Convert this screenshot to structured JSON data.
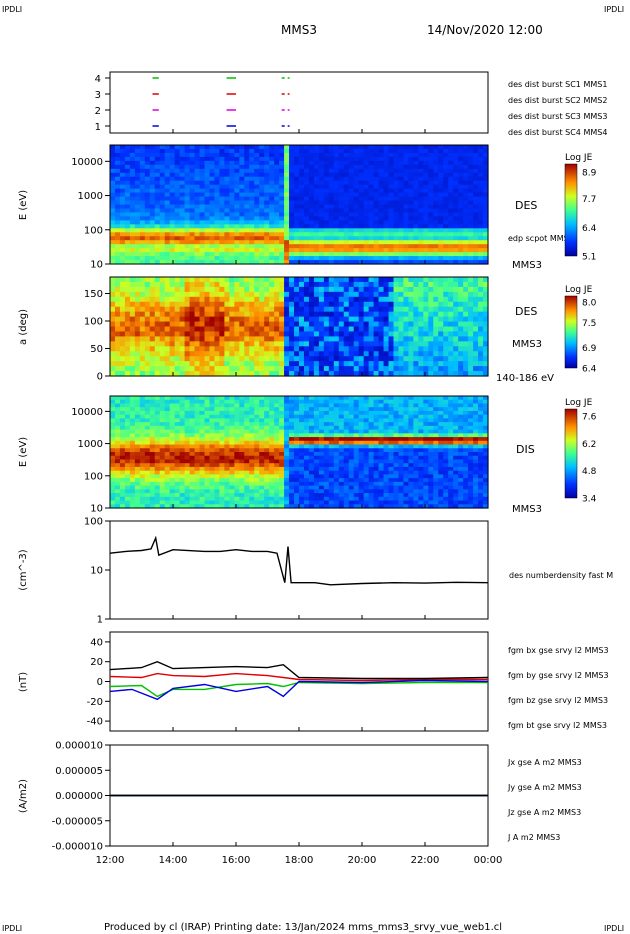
{
  "header": {
    "corner_left_top": "IPDLI",
    "corner_right_top": "IPDLI",
    "corner_left_bottom": "IPDLI",
    "corner_right_bottom": "IPDLI",
    "spacecraft": "MMS3",
    "datetime": "14/Nov/2020 12:00"
  },
  "footer": {
    "text": "Produced by cl (IRAP)   Printing date: 13/Jan/2024   mms_mms3_srvy_vue_web1.cl"
  },
  "colors": {
    "red": "#e00000",
    "green": "#00c000",
    "blue": "#0000e0",
    "magenta": "#e000e0",
    "black": "#000000"
  },
  "chart_data": [
    {
      "type": "timeline",
      "panel": "burst-availability",
      "y_ticks": [
        "1",
        "2",
        "3",
        "4"
      ],
      "legend": [
        {
          "name": "des dist burst SC1 MMS1",
          "color": "#0000e0"
        },
        {
          "name": "des dist burst SC2 MMS2",
          "color": "#e000e0"
        },
        {
          "name": "des dist burst SC3 MMS3",
          "color": "#e00000"
        },
        {
          "name": "des dist burst SC4 MMS4",
          "color": "#00c000"
        }
      ],
      "burst_intervals_hours": [
        [
          13.35,
          13.55
        ],
        [
          15.7,
          16.0
        ],
        [
          17.45,
          17.7
        ]
      ]
    },
    {
      "type": "heatmap",
      "panel": "des-energy",
      "ylabel": "E (eV)",
      "yscale": "log",
      "ylim": [
        10,
        30000
      ],
      "y_ticks": [
        "10",
        "100",
        "1000",
        "10000"
      ],
      "label": "DES",
      "sublabel": "MMS3",
      "overlay_label": "edp scpot MMS3",
      "colorbar": {
        "title": "Log JE",
        "ticks": [
          "8.9",
          "7.7",
          "6.4",
          "5.1"
        ],
        "range": [
          5.1,
          8.9
        ]
      }
    },
    {
      "type": "heatmap",
      "panel": "des-pitch-angle",
      "ylabel": "a (deg)",
      "ylim": [
        0,
        180
      ],
      "y_ticks": [
        "0",
        "50",
        "100",
        "150"
      ],
      "label": "DES",
      "sublabel": "MMS3",
      "energy_range": "140-186 eV",
      "colorbar": {
        "title": "Log JE",
        "ticks": [
          "8.0",
          "7.5",
          "6.9",
          "6.4"
        ],
        "range": [
          6.4,
          8.0
        ]
      }
    },
    {
      "type": "heatmap",
      "panel": "dis-energy",
      "ylabel": "E (eV)",
      "yscale": "log",
      "ylim": [
        10,
        30000
      ],
      "y_ticks": [
        "10",
        "100",
        "1000",
        "10000"
      ],
      "label": "DIS",
      "sublabel": "MMS3",
      "colorbar": {
        "title": "Log JE",
        "ticks": [
          "7.6",
          "6.2",
          "4.8",
          "3.4"
        ],
        "range": [
          3.4,
          7.6
        ]
      }
    },
    {
      "type": "line",
      "panel": "density",
      "ylabel": "(cm^-3)",
      "yscale": "log",
      "ylim": [
        1,
        100
      ],
      "y_ticks": [
        "1",
        "10",
        "100"
      ],
      "series": [
        {
          "name": "des numberdensity fast M",
          "color": "#000000",
          "points": [
            [
              12.0,
              22
            ],
            [
              12.5,
              24
            ],
            [
              13.0,
              25
            ],
            [
              13.3,
              27
            ],
            [
              13.45,
              45
            ],
            [
              13.55,
              20
            ],
            [
              14.0,
              26
            ],
            [
              15.0,
              24
            ],
            [
              15.5,
              24
            ],
            [
              16.0,
              26
            ],
            [
              16.5,
              24
            ],
            [
              17.0,
              24
            ],
            [
              17.3,
              22
            ],
            [
              17.55,
              5.5
            ],
            [
              17.65,
              30
            ],
            [
              17.75,
              5.5
            ],
            [
              18.5,
              5.5
            ],
            [
              19.0,
              5.0
            ],
            [
              20.0,
              5.3
            ],
            [
              21.0,
              5.5
            ],
            [
              22.0,
              5.4
            ],
            [
              23.0,
              5.6
            ],
            [
              24.0,
              5.5
            ]
          ]
        }
      ]
    },
    {
      "type": "line",
      "panel": "magnetic-field",
      "ylabel": "(nT)",
      "ylim": [
        -50,
        50
      ],
      "y_ticks": [
        "-40",
        "-20",
        "0",
        "20",
        "40"
      ],
      "series": [
        {
          "name": "fgm bx gse srvy l2 MMS3",
          "color": "#e00000",
          "points": [
            [
              12.0,
              5
            ],
            [
              13.0,
              4
            ],
            [
              13.5,
              8
            ],
            [
              14.0,
              6
            ],
            [
              15.0,
              5
            ],
            [
              16.0,
              8
            ],
            [
              17.0,
              6
            ],
            [
              17.5,
              4
            ],
            [
              18.0,
              2
            ],
            [
              20.0,
              1
            ],
            [
              22.0,
              2
            ],
            [
              24.0,
              2
            ]
          ]
        },
        {
          "name": "fgm by gse srvy l2 MMS3",
          "color": "#00c000",
          "points": [
            [
              12.0,
              -5
            ],
            [
              13.0,
              -4
            ],
            [
              13.5,
              -15
            ],
            [
              14.0,
              -8
            ],
            [
              15.0,
              -8
            ],
            [
              16.0,
              -3
            ],
            [
              17.0,
              -2
            ],
            [
              17.5,
              -5
            ],
            [
              18.0,
              -1
            ],
            [
              20.0,
              -2
            ],
            [
              22.0,
              -1
            ],
            [
              24.0,
              -1
            ]
          ]
        },
        {
          "name": "fgm bz gse srvy l2 MMS3",
          "color": "#0000e0",
          "points": [
            [
              12.0,
              -10
            ],
            [
              12.7,
              -8
            ],
            [
              13.5,
              -18
            ],
            [
              14.0,
              -7
            ],
            [
              15.0,
              -3
            ],
            [
              16.0,
              -10
            ],
            [
              17.0,
              -5
            ],
            [
              17.5,
              -15
            ],
            [
              18.0,
              0
            ],
            [
              20.0,
              -1
            ],
            [
              22.0,
              1
            ],
            [
              24.0,
              0
            ]
          ]
        },
        {
          "name": "fgm bt gse srvy l2 MMS3",
          "color": "#000000",
          "points": [
            [
              12.0,
              12
            ],
            [
              13.0,
              14
            ],
            [
              13.5,
              20
            ],
            [
              14.0,
              13
            ],
            [
              15.0,
              14
            ],
            [
              16.0,
              15
            ],
            [
              17.0,
              14
            ],
            [
              17.5,
              17
            ],
            [
              18.0,
              4
            ],
            [
              20.0,
              3
            ],
            [
              22.0,
              3
            ],
            [
              24.0,
              4
            ]
          ]
        }
      ]
    },
    {
      "type": "line",
      "panel": "current-density",
      "ylabel": "(A/m2)",
      "ylim": [
        -0.0001,
        0.0001
      ],
      "y_ticks": [
        "0.000010",
        "0.000005",
        "0.000000",
        "-0.000005",
        "-0.000010"
      ],
      "series": [
        {
          "name": "Jx gse A m2 MMS3",
          "color": "#e00000",
          "points": [
            [
              12.0,
              0
            ],
            [
              24.0,
              0
            ]
          ]
        },
        {
          "name": "Jy gse A m2 MMS3",
          "color": "#00c000",
          "points": [
            [
              12.0,
              0
            ],
            [
              24.0,
              0
            ]
          ]
        },
        {
          "name": "Jz gse A m2 MMS3",
          "color": "#0000e0",
          "points": [
            [
              12.0,
              0
            ],
            [
              24.0,
              0
            ]
          ]
        },
        {
          "name": "J A m2 MMS3",
          "color": "#000000",
          "points": [
            [
              12.0,
              0
            ],
            [
              24.0,
              0
            ]
          ]
        }
      ]
    }
  ],
  "x_axis": {
    "ticks": [
      "12:00",
      "14:00",
      "16:00",
      "18:00",
      "20:00",
      "22:00",
      "00:00"
    ],
    "range_hours": [
      12,
      24
    ]
  }
}
